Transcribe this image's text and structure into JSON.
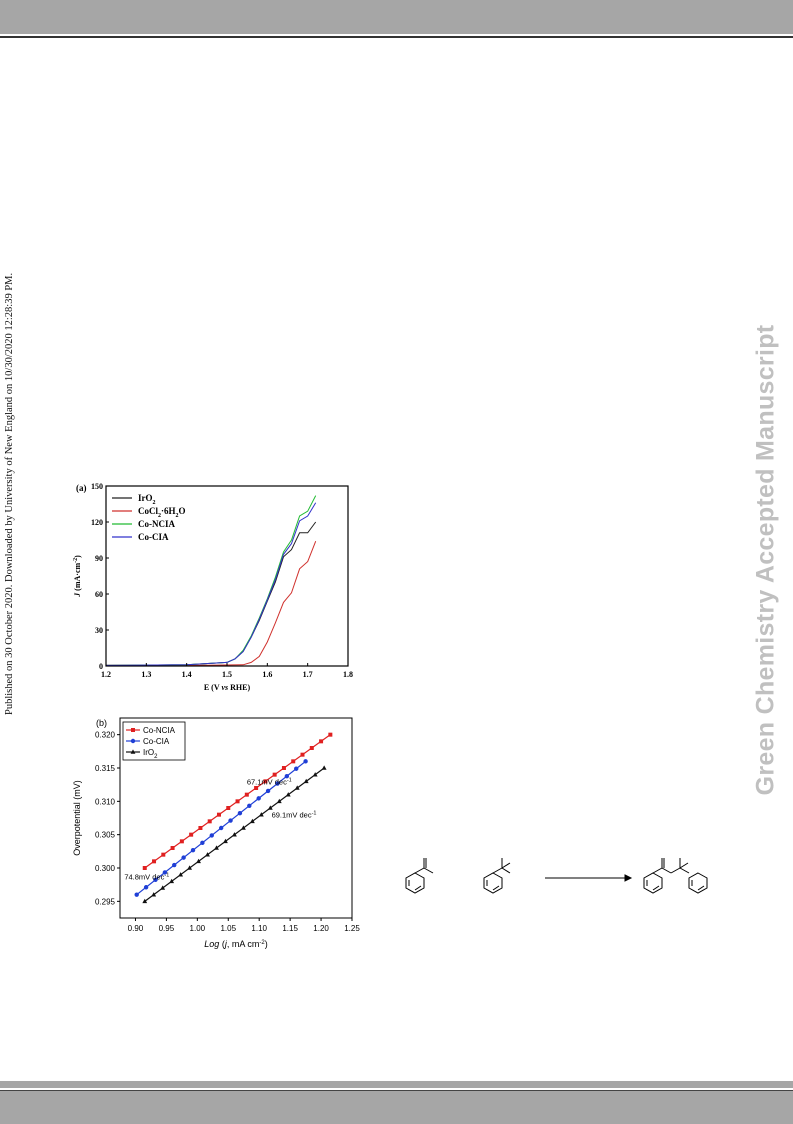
{
  "header": {},
  "side_note": "Published on 30 October 2020. Downloaded by University of New England on 10/30/2020 12:28:39 PM.",
  "watermark": "Green Chemistry Accepted Manuscript",
  "chart_data": [
    {
      "type": "line",
      "panel_label": "(a)",
      "xlabel_parts": [
        "E (V ",
        "vs",
        " RHE)"
      ],
      "ylabel_parts": [
        "J",
        " (mA·cm",
        "-2",
        ")"
      ],
      "xlim": [
        1.2,
        1.8
      ],
      "ylim": [
        0,
        150
      ],
      "xticks": [
        "1.2",
        "1.3",
        "1.4",
        "1.5",
        "1.6",
        "1.7",
        "1.8"
      ],
      "yticks": [
        "0",
        "30",
        "60",
        "90",
        "120",
        "150"
      ],
      "legend_position": "top-left",
      "series": [
        {
          "name": "IrO",
          "sub": "2",
          "sup": "",
          "rest": "",
          "color": "#222222",
          "x": [
            1.2,
            1.4,
            1.5,
            1.52,
            1.54,
            1.56,
            1.58,
            1.6,
            1.62,
            1.64,
            1.66,
            1.68,
            1.7,
            1.72
          ],
          "y": [
            0.5,
            1,
            3,
            6,
            12,
            24,
            38,
            54,
            70,
            88,
            100,
            108,
            114,
            120
          ]
        },
        {
          "name": "CoCl",
          "sub": "2",
          "sup": "",
          "rest": "·6H",
          "sub2": "2",
          "rest2": "O",
          "color": "#d0312d",
          "x": [
            1.2,
            1.45,
            1.54,
            1.56,
            1.58,
            1.6,
            1.62,
            1.64,
            1.66,
            1.68,
            1.7,
            1.72
          ],
          "y": [
            0.5,
            0.6,
            1,
            3,
            8,
            20,
            36,
            50,
            64,
            78,
            90,
            104
          ]
        },
        {
          "name": "Co-NCIA",
          "sub": "",
          "rest": "",
          "color": "#22bb33",
          "x": [
            1.2,
            1.4,
            1.5,
            1.52,
            1.54,
            1.56,
            1.58,
            1.6,
            1.62,
            1.64,
            1.66,
            1.68,
            1.7,
            1.72
          ],
          "y": [
            0.5,
            1,
            3,
            6,
            13,
            25,
            40,
            56,
            74,
            92,
            108,
            122,
            132,
            142
          ]
        },
        {
          "name": "Co-CIA",
          "sub": "",
          "rest": "",
          "color": "#3333cc",
          "x": [
            1.2,
            1.4,
            1.5,
            1.52,
            1.54,
            1.56,
            1.58,
            1.6,
            1.62,
            1.64,
            1.66,
            1.68,
            1.7,
            1.72
          ],
          "y": [
            0.5,
            1,
            3,
            6,
            12,
            24,
            39,
            55,
            72,
            90,
            105,
            118,
            128,
            136
          ]
        }
      ]
    },
    {
      "type": "line",
      "panel_label": "(b)",
      "xlabel_parts": [
        "Log",
        " (",
        "j",
        ", mA cm",
        "-2",
        ")"
      ],
      "ylabel": "Overpotential (mV)",
      "xlim": [
        0.875,
        1.25
      ],
      "ylim": [
        0.2925,
        0.3225
      ],
      "xticks": [
        "0.90",
        "0.95",
        "1.00",
        "1.05",
        "1.10",
        "1.15",
        "1.20",
        "1.25"
      ],
      "yticks": [
        "0.295",
        "0.300",
        "0.305",
        "0.310",
        "0.315",
        "0.320"
      ],
      "legend_position": "top-left",
      "series": [
        {
          "name": "Co-NCIA",
          "sub": "",
          "color": "#e02020",
          "marker": "square",
          "x_start": 0.915,
          "x_end": 1.215,
          "y_start": 0.3,
          "y_end": 0.32
        },
        {
          "name": "Co-CIA",
          "sub": "",
          "color": "#1f3fd6",
          "marker": "circle",
          "x_start": 0.902,
          "x_end": 1.175,
          "y_start": 0.296,
          "y_end": 0.316
        },
        {
          "name": "IrO",
          "sub": "2",
          "color": "#111111",
          "marker": "triangle",
          "x_start": 0.915,
          "x_end": 1.205,
          "y_start": 0.295,
          "y_end": 0.315
        }
      ],
      "annotations": [
        {
          "text": "67.1mV dec",
          "sup": "-1",
          "x": 1.08,
          "y": 0.3125
        },
        {
          "text": "69.1mV dec",
          "sup": "-1",
          "x": 1.12,
          "y": 0.3076
        },
        {
          "text": "74.8mV dec",
          "sup": "-1",
          "x": 0.882,
          "y": 0.2983
        }
      ]
    }
  ]
}
